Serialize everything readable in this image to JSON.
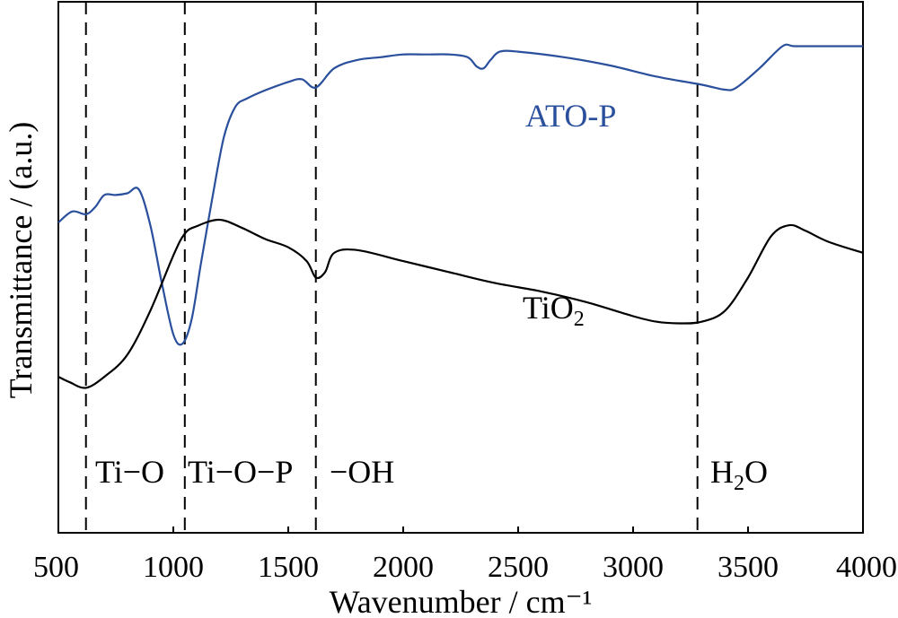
{
  "chart_data": {
    "type": "line",
    "xlabel": "Wavenumber / cm⁻¹",
    "ylabel": "Transmittance / (a.u.)",
    "xlim": [
      500,
      4000
    ],
    "xticks": [
      500,
      1000,
      1500,
      2000,
      2500,
      3000,
      3500,
      4000
    ],
    "yticks": [],
    "grid": false,
    "legend": "none",
    "series": [
      {
        "name": "ATO-P",
        "color": "#2a4f9c",
        "x": [
          500,
          560,
          620,
          660,
          700,
          750,
          800,
          850,
          900,
          950,
          1000,
          1040,
          1080,
          1120,
          1170,
          1220,
          1270,
          1320,
          1400,
          1500,
          1560,
          1620,
          1700,
          1800,
          1900,
          2000,
          2100,
          2200,
          2280,
          2320,
          2350,
          2380,
          2420,
          2500,
          2700,
          2900,
          3100,
          3300,
          3400,
          3450,
          3550,
          3650,
          3700,
          3800,
          4000
        ],
        "y": [
          34.5,
          36.5,
          36,
          37.3,
          39.5,
          39.5,
          39.8,
          40.5,
          34,
          23.5,
          14.2,
          12.5,
          17,
          27,
          39,
          50,
          55.5,
          57,
          58.5,
          60,
          60.5,
          59,
          62.5,
          64,
          64.5,
          65,
          65,
          65,
          64.5,
          62.8,
          62.5,
          64,
          65.5,
          65.5,
          64.5,
          63,
          61,
          59.5,
          58.6,
          59,
          62.5,
          66.5,
          66.5,
          66.5,
          66.5
        ]
      },
      {
        "name": "TiO₂",
        "color": "#000000",
        "x": [
          500,
          550,
          620,
          700,
          800,
          900,
          1000,
          1050,
          1100,
          1200,
          1300,
          1400,
          1500,
          1580,
          1620,
          1660,
          1700,
          1800,
          2000,
          2200,
          2400,
          2600,
          2800,
          3000,
          3100,
          3200,
          3300,
          3400,
          3500,
          3600,
          3680,
          3750,
          3850,
          4000
        ],
        "y": [
          6.5,
          5.5,
          4.5,
          6.5,
          10.5,
          18.5,
          28.5,
          32.5,
          33.8,
          35,
          33.5,
          31.5,
          30,
          27.5,
          24.5,
          25.5,
          29,
          29.5,
          27.5,
          25.5,
          23.5,
          22,
          20,
          17.5,
          16.5,
          16.2,
          16.5,
          18.5,
          24.5,
          32,
          34,
          33,
          31,
          29
        ]
      }
    ],
    "series_labels": [
      "ATO-P",
      "TiO",
      "2"
    ],
    "reference_lines": [
      {
        "x": 620,
        "label": "Ti−O"
      },
      {
        "x": 1050,
        "label": "Ti−O−P"
      },
      {
        "x": 1620,
        "label": "−OH"
      },
      {
        "x": 3280,
        "label_main": "H",
        "label_sub": "2",
        "label_end": "O"
      }
    ]
  }
}
